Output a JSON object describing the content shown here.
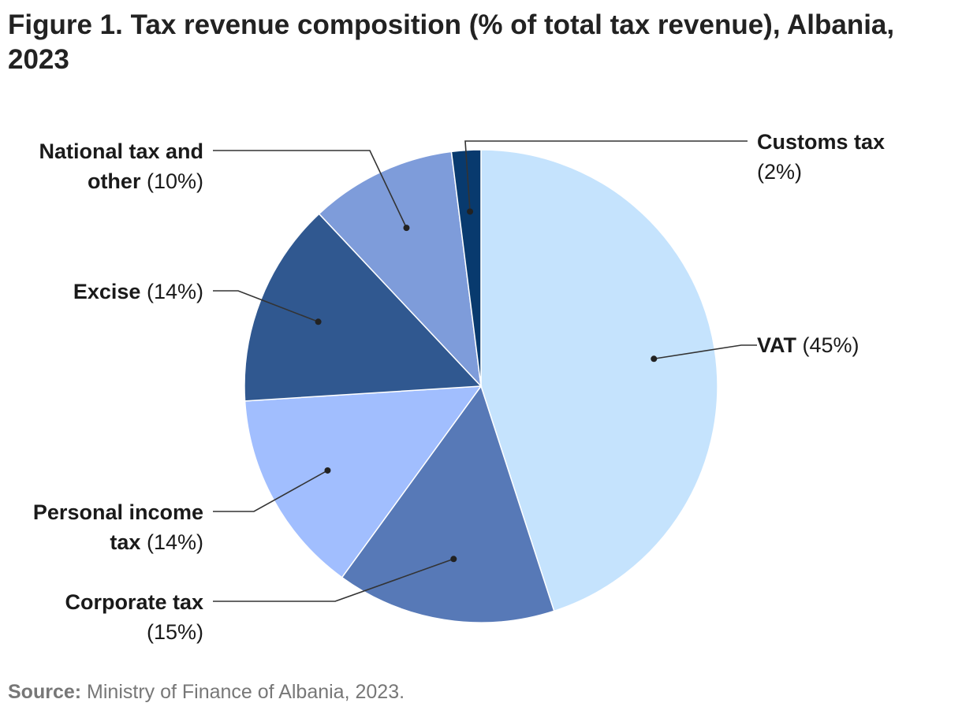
{
  "figure": {
    "title": "Figure 1. Tax revenue composition (% of total tax revenue), Albania, 2023",
    "source_label": "Source:",
    "source_text": " Ministry of Finance of Albania, 2023."
  },
  "chart_data": {
    "type": "pie",
    "title": "Figure 1. Tax revenue composition (% of total tax revenue), Albania, 2023",
    "unit": "%",
    "start": "top",
    "direction": "clockwise",
    "slices": [
      {
        "label": "VAT",
        "value": 45,
        "value_label": "(45%)",
        "color": "#c5e3fd"
      },
      {
        "label": "Corporate tax",
        "value": 15,
        "value_label": "(15%)",
        "color": "#5779b7"
      },
      {
        "label": "Personal income tax",
        "value": 14,
        "value_label": "(14%)",
        "color": "#a1befe"
      },
      {
        "label": "Excise",
        "value": 14,
        "value_label": "(14%)",
        "color": "#305890"
      },
      {
        "label": "National tax and other",
        "value": 10,
        "value_label": "(10%)",
        "color": "#7e9cda"
      },
      {
        "label": "Customs tax",
        "value": 2,
        "value_label": "(2%)",
        "color": "#083a6e"
      }
    ]
  }
}
